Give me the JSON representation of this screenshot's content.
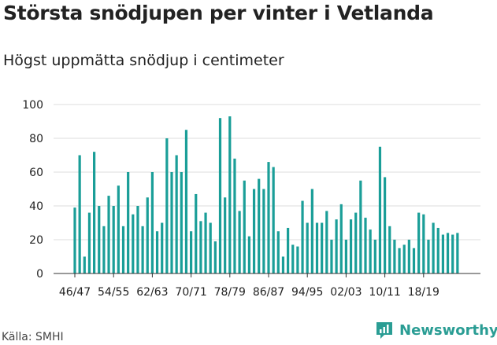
{
  "header": {
    "title": "Största snödjupen per vinter i Vetlanda",
    "subtitle": "Högst uppmätta snödjup i centimeter"
  },
  "footer": {
    "source": "Källa: SMHI",
    "brand": "Newsworthy"
  },
  "colors": {
    "bar": "#1a9e98",
    "grid": "#dddddd",
    "brand": "#2a9d94"
  },
  "chart_data": {
    "type": "bar",
    "title": "Största snödjupen per vinter i Vetlanda",
    "subtitle": "Högst uppmätta snödjup i centimeter",
    "xlabel": "",
    "ylabel": "",
    "ylim": [
      0,
      100
    ],
    "yticks": [
      0,
      20,
      40,
      60,
      80,
      100
    ],
    "grid": true,
    "xtick_labels": [
      "46/47",
      "54/55",
      "62/63",
      "70/71",
      "78/79",
      "86/87",
      "94/95",
      "02/03",
      "10/11",
      "18/19"
    ],
    "categories": [
      "46/47",
      "47/48",
      "48/49",
      "49/50",
      "50/51",
      "51/52",
      "52/53",
      "53/54",
      "54/55",
      "55/56",
      "56/57",
      "57/58",
      "58/59",
      "59/60",
      "60/61",
      "61/62",
      "62/63",
      "63/64",
      "64/65",
      "65/66",
      "66/67",
      "67/68",
      "68/69",
      "69/70",
      "70/71",
      "71/72",
      "72/73",
      "73/74",
      "74/75",
      "75/76",
      "76/77",
      "77/78",
      "78/79",
      "79/80",
      "80/81",
      "81/82",
      "82/83",
      "83/84",
      "84/85",
      "85/86",
      "86/87",
      "87/88",
      "88/89",
      "89/90",
      "90/91",
      "91/92",
      "92/93",
      "93/94",
      "94/95",
      "95/96",
      "96/97",
      "97/98",
      "98/99",
      "99/00",
      "00/01",
      "01/02",
      "02/03",
      "03/04",
      "04/05",
      "05/06",
      "06/07",
      "07/08",
      "08/09",
      "09/10",
      "10/11",
      "11/12",
      "12/13",
      "13/14",
      "14/15",
      "15/16",
      "16/17",
      "17/18",
      "18/19",
      "19/20",
      "20/21",
      "21/22",
      "22/23",
      "23/24",
      "24/25",
      "25/26"
    ],
    "values": [
      39,
      70,
      10,
      36,
      72,
      40,
      28,
      46,
      40,
      52,
      28,
      60,
      35,
      40,
      28,
      45,
      60,
      25,
      30,
      80,
      60,
      70,
      60,
      85,
      25,
      47,
      31,
      36,
      30,
      19,
      92,
      45,
      93,
      68,
      37,
      55,
      22,
      50,
      56,
      50,
      66,
      63,
      25,
      10,
      27,
      17,
      16,
      43,
      30,
      50,
      30,
      30,
      37,
      20,
      32,
      41,
      20,
      32,
      36,
      55,
      33,
      26,
      20,
      75,
      57,
      28,
      20,
      15,
      17,
      20,
      15,
      36,
      35,
      20,
      30,
      27,
      23,
      24,
      23,
      24
    ]
  }
}
